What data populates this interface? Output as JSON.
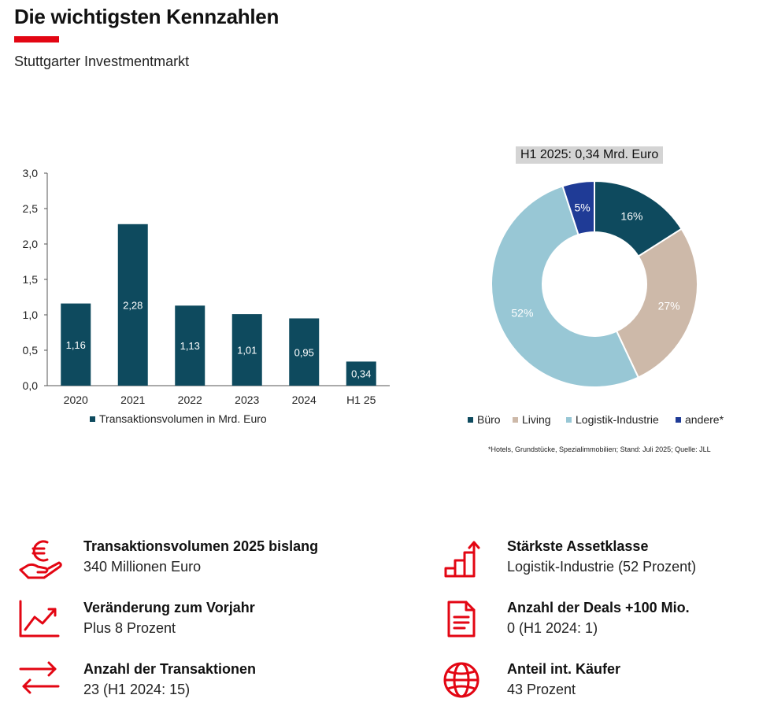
{
  "header": {
    "title": "Die wichtigsten Kennzahlen",
    "subtitle": "Stuttgarter Investmentmarkt"
  },
  "chart_data": [
    {
      "type": "bar",
      "categories": [
        "2020",
        "2021",
        "2022",
        "2023",
        "2024",
        "H1 25"
      ],
      "values": [
        1.16,
        2.28,
        1.13,
        1.01,
        0.95,
        0.34
      ],
      "value_labels": [
        "1,16",
        "2,28",
        "1,13",
        "1,01",
        "0,95",
        "0,34"
      ],
      "ylim": [
        0,
        3
      ],
      "yticks": [
        "0,0",
        "0,5",
        "1,0",
        "1,5",
        "2,0",
        "2,5",
        "3,0"
      ],
      "legend": "Transaktionsvolumen in Mrd. Euro",
      "legend_position": "bottom",
      "color": "#0e4a5e",
      "grid": false
    },
    {
      "type": "pie",
      "title": "H1 2025: 0,34 Mrd. Euro",
      "labels": [
        "Büro",
        "Living",
        "Logistik-Industrie",
        "andere*"
      ],
      "values": [
        16,
        27,
        52,
        5
      ],
      "value_labels": [
        "16%",
        "27%",
        "52%",
        "5%"
      ],
      "colors": [
        "#0e4a5e",
        "#cdb9a9",
        "#98c7d5",
        "#1f3b96"
      ],
      "donut": true,
      "legend_position": "bottom",
      "footnote": "*Hotels, Grundstücke, Spezialimmobilien; Stand: Juli 2025; Quelle: JLL"
    }
  ],
  "kpis": {
    "volume": {
      "title": "Transaktionsvolumen 2025 bislang",
      "value": "340 Millionen Euro",
      "icon": "euro-hand-icon"
    },
    "change": {
      "title": "Veränderung zum Vorjahr",
      "value": "Plus 8 Prozent",
      "icon": "trend-chart-icon"
    },
    "count": {
      "title": "Anzahl der Transaktionen",
      "value": "23 (H1 2024: 15)",
      "icon": "exchange-arrows-icon"
    },
    "asset": {
      "title": "Stärkste Assetklasse",
      "value": "Logistik-Industrie (52 Prozent)",
      "icon": "growth-bars-icon"
    },
    "deals": {
      "title": "Anzahl der Deals +100 Mio.",
      "value": "0 (H1 2024: 1)",
      "icon": "document-icon"
    },
    "intl": {
      "title": "Anteil int. Käufer",
      "value": "43 Prozent",
      "icon": "globe-icon"
    }
  },
  "colors": {
    "accent": "#e30613",
    "bar": "#0e4a5e"
  }
}
